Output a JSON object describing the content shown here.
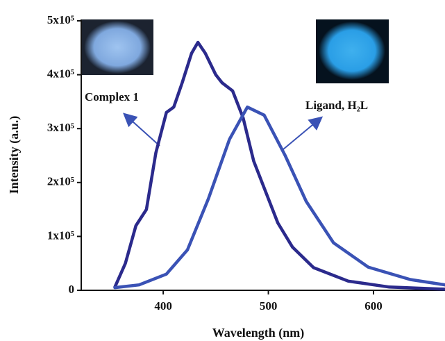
{
  "chart_data": {
    "type": "line",
    "xlabel": "Wavelength (nm)",
    "ylabel": "Intensity (a.u.)",
    "xlim": [
      322,
      668
    ],
    "xticks": [
      400,
      500,
      600
    ],
    "ylim": [
      0,
      500000
    ],
    "yticks": [
      0,
      {
        "value": 100000,
        "label": "1x10⁵"
      },
      {
        "value": 200000,
        "label": "2x10⁵"
      },
      {
        "value": 300000,
        "label": "3x10⁵"
      },
      {
        "value": 400000,
        "label": "4x10⁵"
      },
      {
        "value": 500000,
        "label": "5x10⁵"
      }
    ],
    "annotations": [
      "Complex 1",
      "Ligand, H₂L"
    ],
    "series": [
      {
        "name": "Complex 1",
        "color": "#2b2a8c",
        "x": [
          354,
          364,
          374,
          384,
          393,
          403,
          410,
          418,
          427,
          433,
          440,
          450,
          456,
          466,
          476,
          486,
          496,
          509,
          523,
          543,
          576,
          615,
          668
        ],
        "values": [
          6000,
          50000,
          120000,
          150000,
          255000,
          330000,
          340000,
          385000,
          440000,
          460000,
          440000,
          400000,
          385000,
          370000,
          320000,
          240000,
          190000,
          125000,
          80000,
          42000,
          17000,
          6000,
          2000
        ]
      },
      {
        "name": "Ligand, H₂L",
        "color": "#3a52b5",
        "x": [
          354,
          377,
          403,
          423,
          443,
          463,
          480,
          496,
          516,
          536,
          562,
          595,
          635,
          668
        ],
        "values": [
          5000,
          10000,
          30000,
          75000,
          170000,
          280000,
          340000,
          325000,
          250000,
          165000,
          88000,
          43000,
          20000,
          10000
        ]
      }
    ]
  }
}
